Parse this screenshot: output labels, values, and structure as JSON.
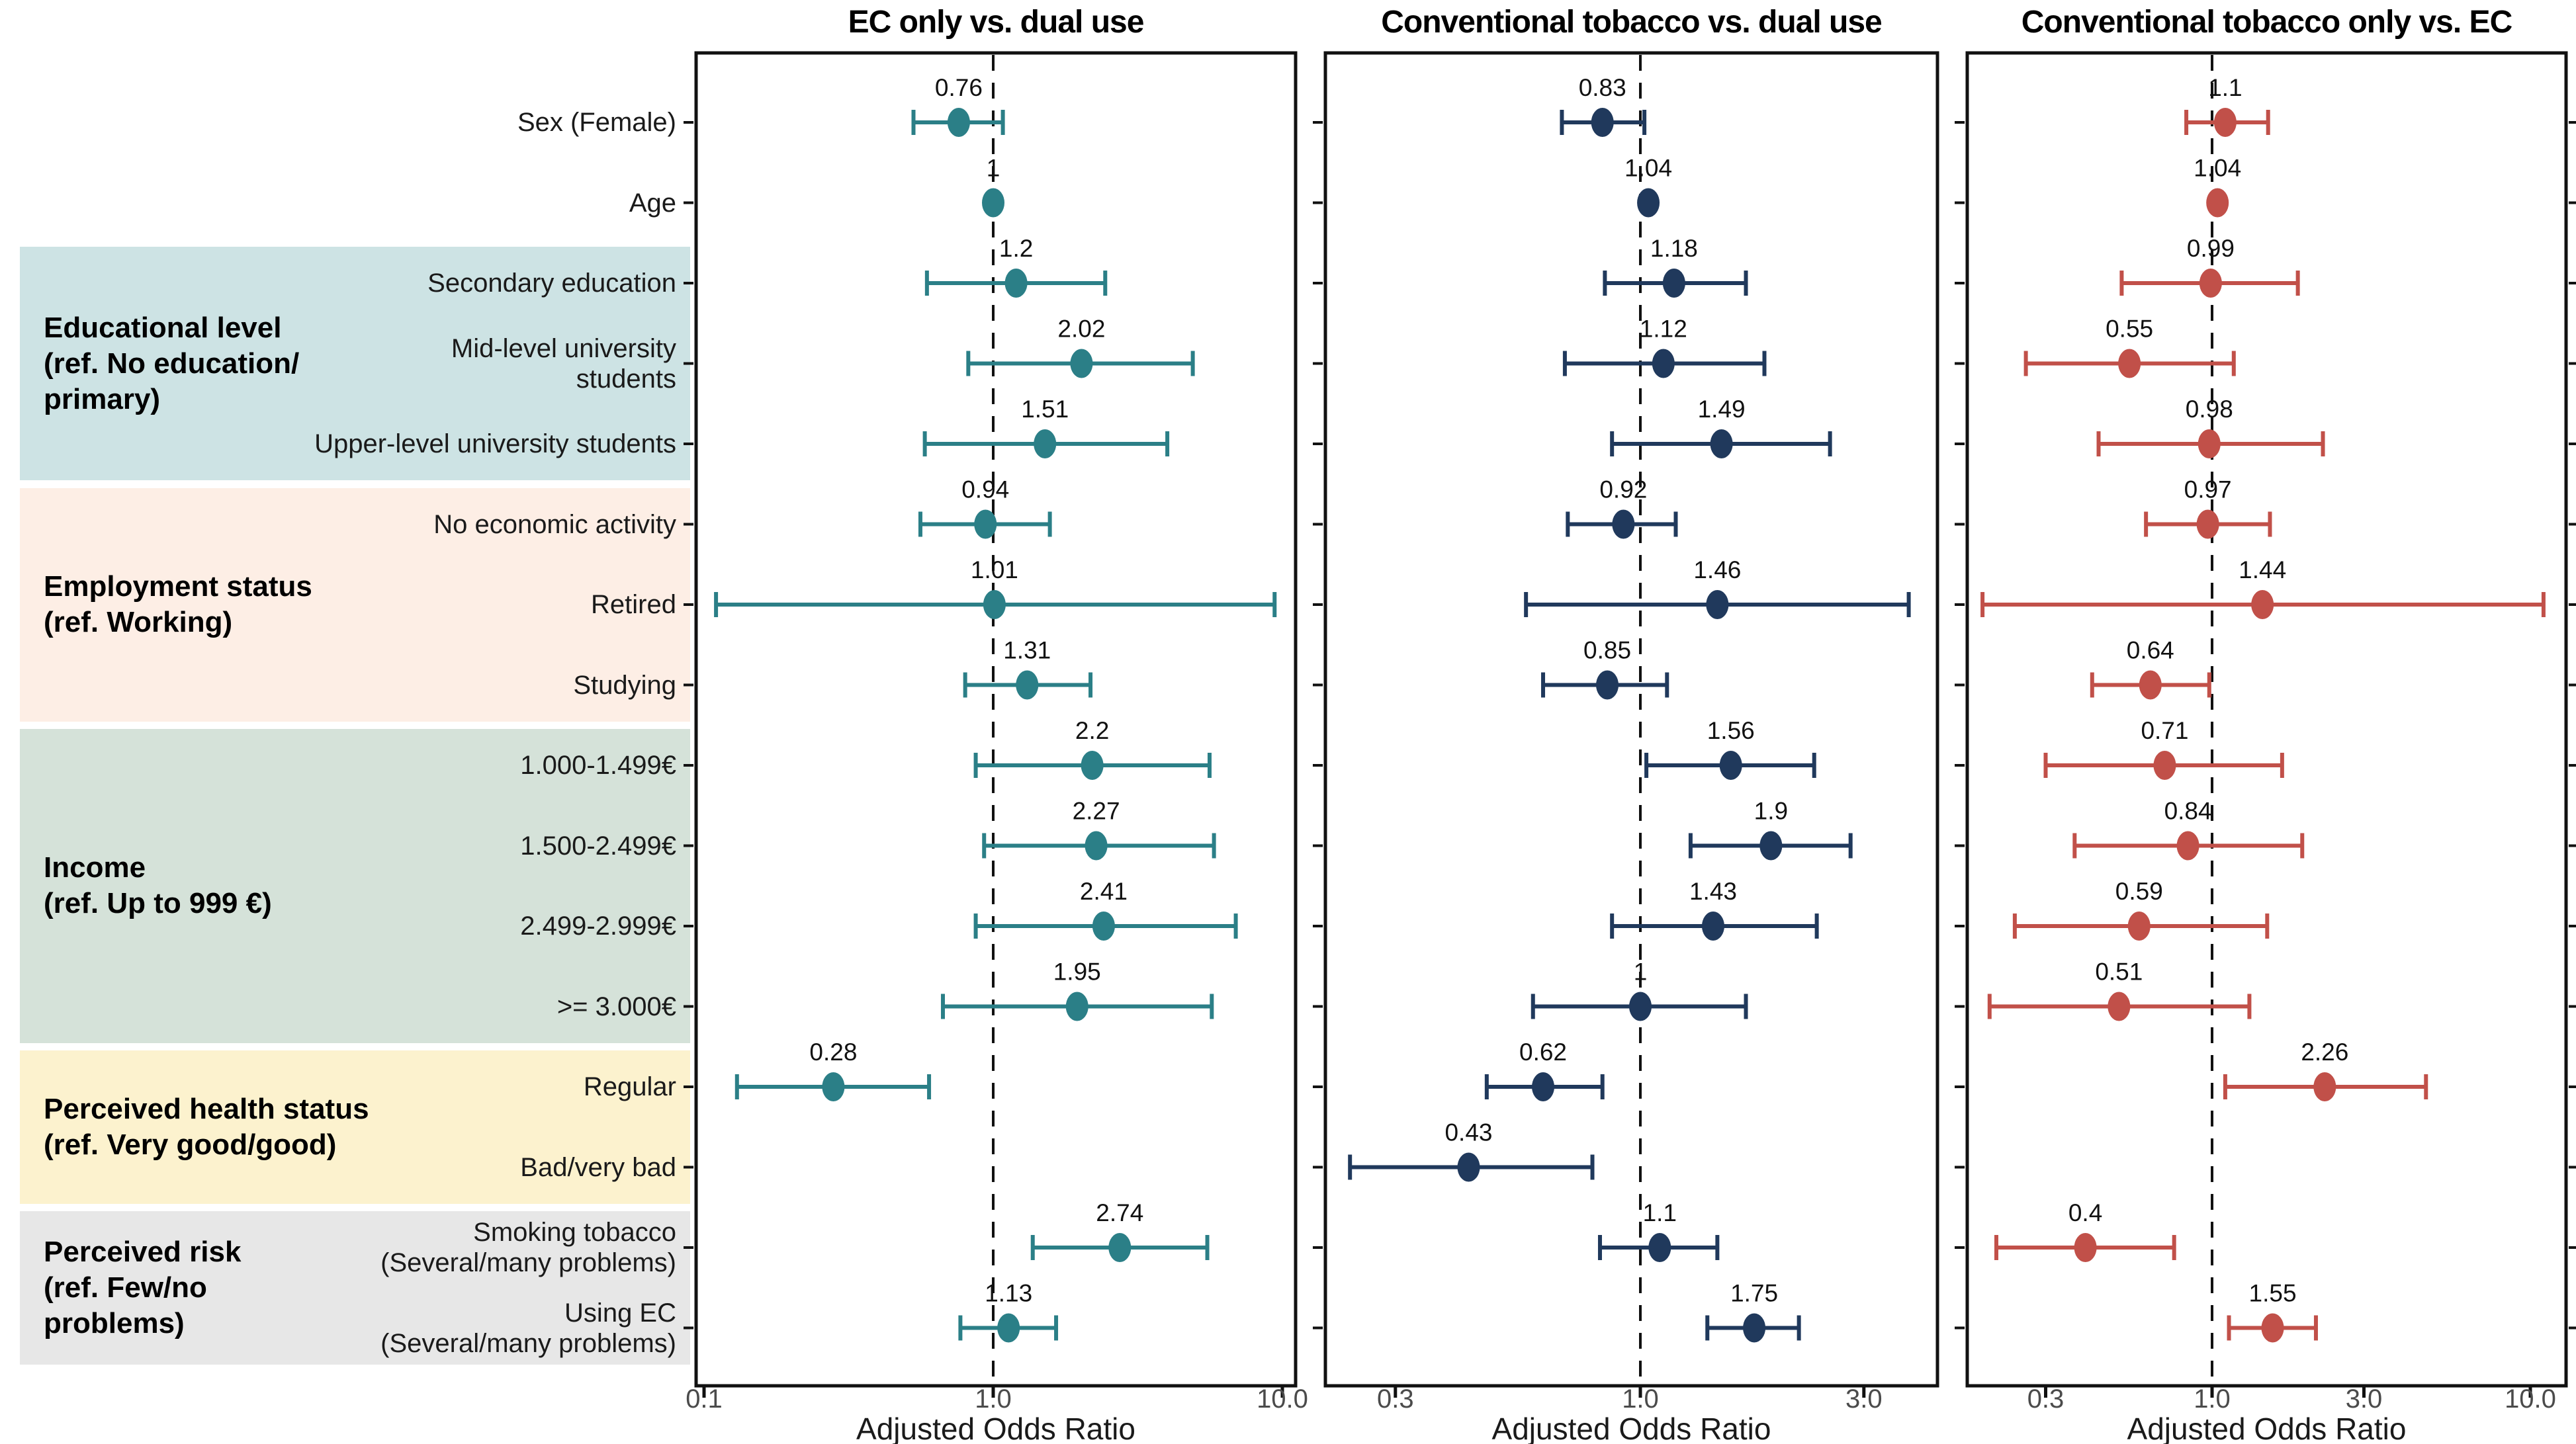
{
  "chart_data": {
    "type": "scatter",
    "subtype": "forest-plot-odds-ratios",
    "xlabel": "Adjusted Odds Ratio",
    "log_scale_x": true,
    "reference_line": 1.0,
    "grid": false,
    "row_labels": [
      {
        "lines": [
          "Sex (Female)"
        ]
      },
      {
        "lines": [
          "Age"
        ]
      },
      {
        "lines": [
          "Secondary education"
        ]
      },
      {
        "lines": [
          "Mid-level university",
          "students"
        ]
      },
      {
        "lines": [
          "Upper-level university students"
        ]
      },
      {
        "lines": [
          "No economic activity"
        ]
      },
      {
        "lines": [
          "Retired"
        ]
      },
      {
        "lines": [
          "Studying"
        ]
      },
      {
        "lines": [
          "1.000-1.499€"
        ]
      },
      {
        "lines": [
          "1.500-2.499€"
        ]
      },
      {
        "lines": [
          "2.499-2.999€"
        ]
      },
      {
        "lines": [
          ">= 3.000€"
        ]
      },
      {
        "lines": [
          "Regular"
        ]
      },
      {
        "lines": [
          "Bad/very bad"
        ]
      },
      {
        "lines": [
          "Smoking tobacco",
          "(Several/many problems)"
        ]
      },
      {
        "lines": [
          "Using EC",
          "(Several/many problems)"
        ]
      }
    ],
    "groups": [
      {
        "id": "educational-level",
        "label_lines": [
          "Educational level",
          "(ref. No education/",
          "primary)"
        ],
        "rows": [
          2,
          4
        ],
        "color": "#cde3e4"
      },
      {
        "id": "employment-status",
        "label_lines": [
          "Employment status",
          "(ref. Working)"
        ],
        "rows": [
          5,
          7
        ],
        "color": "#fdeee5"
      },
      {
        "id": "income",
        "label_lines": [
          "Income",
          "(ref. Up to 999 €)"
        ],
        "rows": [
          8,
          11
        ],
        "color": "#d5e2d9"
      },
      {
        "id": "perceived-health-status",
        "label_lines": [
          "Perceived health status",
          "(ref. Very good/good)"
        ],
        "rows": [
          12,
          13
        ],
        "color": "#fcf2ce"
      },
      {
        "id": "perceived-risk",
        "label_lines": [
          "Perceived risk",
          "(ref. Few/no",
          "problems)"
        ],
        "rows": [
          14,
          15
        ],
        "color": "#e7e7e7"
      }
    ],
    "panels": [
      {
        "title": "EC only vs. dual use",
        "color": "#2b7f87",
        "axis_tick_labels": [
          "0.1",
          "1.0",
          "10.0"
        ],
        "ticks": [
          {
            "v": 0.1,
            "label": "0.1"
          },
          {
            "v": 1,
            "label": "1.0"
          },
          {
            "v": 10,
            "label": "10.0"
          }
        ],
        "xlim": [
          0.094,
          11.1
        ],
        "points": [
          {
            "row": 0,
            "label": "0.76",
            "or": 0.76,
            "lo": 0.53,
            "hi": 1.08
          },
          {
            "row": 1,
            "label": "1",
            "or": 1.0,
            "lo": null,
            "hi": null
          },
          {
            "row": 2,
            "label": "1.2",
            "or": 1.2,
            "lo": 0.59,
            "hi": 2.44
          },
          {
            "row": 3,
            "label": "2.02",
            "or": 2.02,
            "lo": 0.82,
            "hi": 4.9
          },
          {
            "row": 4,
            "label": "1.51",
            "or": 1.51,
            "lo": 0.58,
            "hi": 4.0
          },
          {
            "row": 5,
            "label": "0.94",
            "or": 0.94,
            "lo": 0.56,
            "hi": 1.57
          },
          {
            "row": 6,
            "label": "1.01",
            "or": 1.01,
            "lo": 0.11,
            "hi": 9.4
          },
          {
            "row": 7,
            "label": "1.31",
            "or": 1.31,
            "lo": 0.8,
            "hi": 2.17
          },
          {
            "row": 8,
            "label": "2.2",
            "or": 2.2,
            "lo": 0.87,
            "hi": 5.6
          },
          {
            "row": 9,
            "label": "2.27",
            "or": 2.27,
            "lo": 0.93,
            "hi": 5.8
          },
          {
            "row": 10,
            "label": "2.41",
            "or": 2.41,
            "lo": 0.87,
            "hi": 6.9
          },
          {
            "row": 11,
            "label": "1.95",
            "or": 1.95,
            "lo": 0.67,
            "hi": 5.7
          },
          {
            "row": 12,
            "label": "0.28",
            "or": 0.28,
            "lo": 0.13,
            "hi": 0.6
          },
          {
            "row": 14,
            "label": "2.74",
            "or": 2.74,
            "lo": 1.37,
            "hi": 5.5
          },
          {
            "row": 15,
            "label": "1.13",
            "or": 1.13,
            "lo": 0.77,
            "hi": 1.65
          }
        ]
      },
      {
        "title": "Conventional tobacco vs. dual use",
        "color": "#20395c",
        "axis_tick_labels": [
          "0.3",
          "1.0",
          "3.0"
        ],
        "ticks": [
          {
            "v": 0.3,
            "label": "0.3"
          },
          {
            "v": 1,
            "label": "1.0"
          },
          {
            "v": 3,
            "label": "3.0"
          }
        ],
        "xlim": [
          0.21,
          4.3
        ],
        "points": [
          {
            "row": 0,
            "label": "0.83",
            "or": 0.83,
            "lo": 0.68,
            "hi": 1.02
          },
          {
            "row": 1,
            "label": "1.04",
            "or": 1.04,
            "lo": null,
            "hi": null
          },
          {
            "row": 2,
            "label": "1.18",
            "or": 1.18,
            "lo": 0.84,
            "hi": 1.68
          },
          {
            "row": 3,
            "label": "1.12",
            "or": 1.12,
            "lo": 0.69,
            "hi": 1.84
          },
          {
            "row": 4,
            "label": "1.49",
            "or": 1.49,
            "lo": 0.87,
            "hi": 2.54
          },
          {
            "row": 5,
            "label": "0.92",
            "or": 0.92,
            "lo": 0.7,
            "hi": 1.19
          },
          {
            "row": 6,
            "label": "1.46",
            "or": 1.46,
            "lo": 0.57,
            "hi": 3.74
          },
          {
            "row": 7,
            "label": "0.85",
            "or": 0.85,
            "lo": 0.62,
            "hi": 1.14
          },
          {
            "row": 8,
            "label": "1.56",
            "or": 1.56,
            "lo": 1.03,
            "hi": 2.35
          },
          {
            "row": 9,
            "label": "1.9",
            "or": 1.9,
            "lo": 1.28,
            "hi": 2.81
          },
          {
            "row": 10,
            "label": "1.43",
            "or": 1.43,
            "lo": 0.87,
            "hi": 2.38
          },
          {
            "row": 11,
            "label": "1",
            "or": 1.0,
            "lo": 0.59,
            "hi": 1.68
          },
          {
            "row": 12,
            "label": "0.62",
            "or": 0.62,
            "lo": 0.47,
            "hi": 0.83
          },
          {
            "row": 13,
            "label": "0.43",
            "or": 0.43,
            "lo": 0.24,
            "hi": 0.79
          },
          {
            "row": 14,
            "label": "1.1",
            "or": 1.1,
            "lo": 0.82,
            "hi": 1.46
          },
          {
            "row": 15,
            "label": "1.75",
            "or": 1.75,
            "lo": 1.39,
            "hi": 2.18
          }
        ]
      },
      {
        "title": "Conventional tobacco only vs. EC",
        "color": "#c15049",
        "axis_tick_labels": [
          "0.3",
          "1.0",
          "3.0",
          "10.0"
        ],
        "ticks": [
          {
            "v": 0.3,
            "label": "0.3"
          },
          {
            "v": 1,
            "label": "1.0"
          },
          {
            "v": 3,
            "label": "3.0"
          },
          {
            "v": 10,
            "label": "10.0"
          }
        ],
        "xlim": [
          0.17,
          12.9
        ],
        "points": [
          {
            "row": 0,
            "label": "1.1",
            "or": 1.1,
            "lo": 0.83,
            "hi": 1.5
          },
          {
            "row": 1,
            "label": "1.04",
            "or": 1.04,
            "lo": null,
            "hi": null
          },
          {
            "row": 2,
            "label": "0.99",
            "or": 0.99,
            "lo": 0.52,
            "hi": 1.86
          },
          {
            "row": 3,
            "label": "0.55",
            "or": 0.55,
            "lo": 0.26,
            "hi": 1.17
          },
          {
            "row": 4,
            "label": "0.98",
            "or": 0.98,
            "lo": 0.44,
            "hi": 2.23
          },
          {
            "row": 5,
            "label": "0.97",
            "or": 0.97,
            "lo": 0.62,
            "hi": 1.52
          },
          {
            "row": 6,
            "label": "1.44",
            "or": 1.44,
            "lo": 0.19,
            "hi": 11.0
          },
          {
            "row": 7,
            "label": "0.64",
            "or": 0.64,
            "lo": 0.42,
            "hi": 0.98
          },
          {
            "row": 8,
            "label": "0.71",
            "or": 0.71,
            "lo": 0.3,
            "hi": 1.66
          },
          {
            "row": 9,
            "label": "0.84",
            "or": 0.84,
            "lo": 0.37,
            "hi": 1.92
          },
          {
            "row": 10,
            "label": "0.59",
            "or": 0.59,
            "lo": 0.24,
            "hi": 1.49
          },
          {
            "row": 11,
            "label": "0.51",
            "or": 0.51,
            "lo": 0.2,
            "hi": 1.31
          },
          {
            "row": 12,
            "label": "2.26",
            "or": 2.26,
            "lo": 1.1,
            "hi": 4.7
          },
          {
            "row": 14,
            "label": "0.4",
            "or": 0.4,
            "lo": 0.21,
            "hi": 0.76
          },
          {
            "row": 15,
            "label": "1.55",
            "or": 1.55,
            "lo": 1.13,
            "hi": 2.12
          }
        ]
      }
    ]
  }
}
